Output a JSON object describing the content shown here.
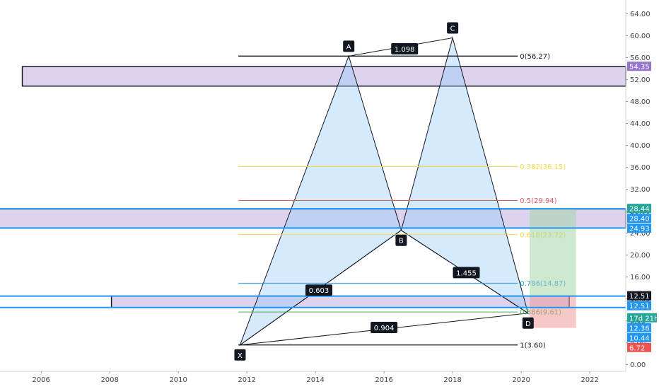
{
  "chart_data": {
    "type": "candlestick",
    "y_axis": {
      "ticks": [
        "64.00",
        "60.00",
        "56.00",
        "52.00",
        "48.00",
        "44.00",
        "40.00",
        "36.00",
        "32.00",
        "28.00",
        "24.00",
        "20.00",
        "16.00",
        "12.00",
        "8.00",
        "4.00",
        "0.00"
      ],
      "tick_values": [
        64,
        60,
        56,
        52,
        48,
        44,
        40,
        36,
        32,
        28,
        24,
        20,
        16,
        12,
        8,
        4,
        0
      ],
      "range": [
        -1.2,
        66.5
      ],
      "position": "right"
    },
    "x_axis": {
      "ticks": [
        "2006",
        "2008",
        "2010",
        "2012",
        "2014",
        "2016",
        "2018",
        "2020",
        "2022"
      ],
      "tick_values": [
        2006,
        2008,
        2010,
        2012,
        2014,
        2016,
        2018,
        2020,
        2022
      ],
      "range": [
        2004.8,
        2023.05
      ]
    },
    "price_tags": [
      {
        "text": "54.35",
        "value": 54.35,
        "color": "#9575cd"
      },
      {
        "text": "28.44",
        "value": 28.44,
        "color": "#26a69a"
      },
      {
        "text": "28.40",
        "value": 28.4,
        "color": "#2196f3"
      },
      {
        "text": "24.93",
        "value": 24.93,
        "color": "#2196f3"
      },
      {
        "text": "12.51",
        "value": 12.51,
        "color": "#131722"
      },
      {
        "text": "12.51",
        "value": 12.51,
        "color": "#2196f3"
      },
      {
        "text": "17d 21h",
        "value": 8.5,
        "color": "#26a69a"
      },
      {
        "text": "12.36",
        "value": 12.36,
        "color": "#2196f3"
      },
      {
        "text": "10.44",
        "value": 10.44,
        "color": "#2196f3"
      },
      {
        "text": "6.72",
        "value": 6.72,
        "color": "#ef5350"
      }
    ],
    "zones": [
      {
        "x0": 2005.45,
        "x1": 2023.05,
        "y0": 50.8,
        "y1": 54.35,
        "color": "#b39ddb",
        "border": "#131722"
      },
      {
        "x0": 2004.7,
        "x1": 2023.05,
        "y0": 24.93,
        "y1": 28.4,
        "color": "#b39ddb",
        "border": "#131722"
      },
      {
        "x0": 2008.05,
        "x1": 2021.4,
        "y0": 10.44,
        "y1": 12.51,
        "color": "#b39ddb",
        "border": "#131722"
      }
    ],
    "h_lines": [
      {
        "y": 28.44,
        "color": "#2196f3"
      },
      {
        "y": 24.93,
        "color": "#2196f3"
      },
      {
        "y": 12.51,
        "color": "#2196f3"
      },
      {
        "y": 10.44,
        "color": "#2196f3"
      }
    ],
    "fib_levels": [
      {
        "ratio": 0,
        "label": "0(56.27)",
        "value": 56.27,
        "color": "#131722"
      },
      {
        "ratio": 0.382,
        "label": "0.382(36.15)",
        "value": 36.15,
        "color": "#f5d742"
      },
      {
        "ratio": 0.5,
        "label": "0.5(29.94)",
        "value": 29.94,
        "color": "#e05a5a"
      },
      {
        "ratio": 0.618,
        "label": "0.618(23.72)",
        "value": 23.72,
        "color": "#f5d742"
      },
      {
        "ratio": 0.786,
        "label": "0.786(14.87)",
        "value": 14.87,
        "color": "#2196f3"
      },
      {
        "ratio": 0.886,
        "label": "0.886(9.61)",
        "value": 9.61,
        "color": "#4caf50"
      },
      {
        "ratio": 1,
        "label": "1(3.60)",
        "value": 3.6,
        "color": "#131722"
      }
    ],
    "fib_x_range": [
      2011.75,
      2019.9
    ],
    "harmonic_pattern": {
      "points": [
        {
          "name": "X",
          "x": 2011.8,
          "y": 3.6
        },
        {
          "name": "A",
          "x": 2014.97,
          "y": 56.27
        },
        {
          "name": "B",
          "x": 2016.5,
          "y": 24.5
        },
        {
          "name": "C",
          "x": 2018.0,
          "y": 59.6
        },
        {
          "name": "D",
          "x": 2020.2,
          "y": 9.4
        }
      ],
      "ratios": [
        {
          "text": "1.098",
          "x": 2016.6,
          "y": 57.6
        },
        {
          "text": "0.603",
          "x": 2014.1,
          "y": 13.6
        },
        {
          "text": "1.455",
          "x": 2018.4,
          "y": 16.8
        },
        {
          "text": "0.904",
          "x": 2016.0,
          "y": 6.8
        }
      ]
    },
    "position_box": {
      "x0": 2020.25,
      "x1": 2021.6,
      "entry": 12.51,
      "target": 28.44,
      "stop": 6.72
    },
    "candles": []
  }
}
